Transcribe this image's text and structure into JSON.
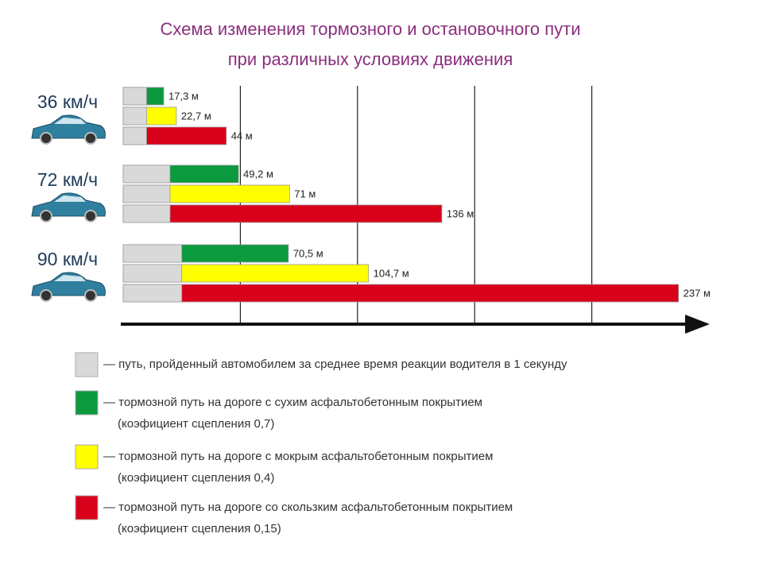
{
  "chart_data": {
    "type": "bar",
    "title": "Схема изменения тормозного и остановочного пути",
    "subtitle": "при различных условиях движения",
    "categories": [
      "36 км/ч",
      "72 км/ч",
      "90 км/ч"
    ],
    "xlim": [
      0,
      250
    ],
    "xticks": [
      50,
      100,
      150,
      200
    ],
    "grid": true,
    "reaction": {
      "name": "— путь, пройденный автомобилем за среднее время реакции водителя в 1 секунду",
      "color": "#d9d9d9",
      "values": [
        10,
        20,
        25
      ]
    },
    "series": [
      {
        "name": "— тормозной путь на дороге с сухим асфальтобетонным покрытием",
        "subname": "(коэфициент сцепления 0,7)",
        "color": "#0b9a3e",
        "values": [
          17.3,
          49.2,
          70.5
        ],
        "value_labels": [
          "17,3 м",
          "49,2 м",
          "70,5 м"
        ]
      },
      {
        "name": "— тормозной путь на дороге с мокрым асфальтобетонным покрытием",
        "subname": "(коэфициент сцепления 0,4)",
        "color": "#ffff00",
        "values": [
          22.7,
          71,
          104.7
        ],
        "value_labels": [
          "22,7 м",
          "71 м",
          "104,7 м"
        ]
      },
      {
        "name": "— тормозной путь на дороге со скользким асфальтобетонным покрытием",
        "subname": "(коэфициент сцепления 0,15)",
        "color": "#d9001b",
        "values": [
          44,
          136,
          237
        ],
        "value_labels": [
          "44 м",
          "136 м",
          "237 м"
        ]
      }
    ]
  }
}
